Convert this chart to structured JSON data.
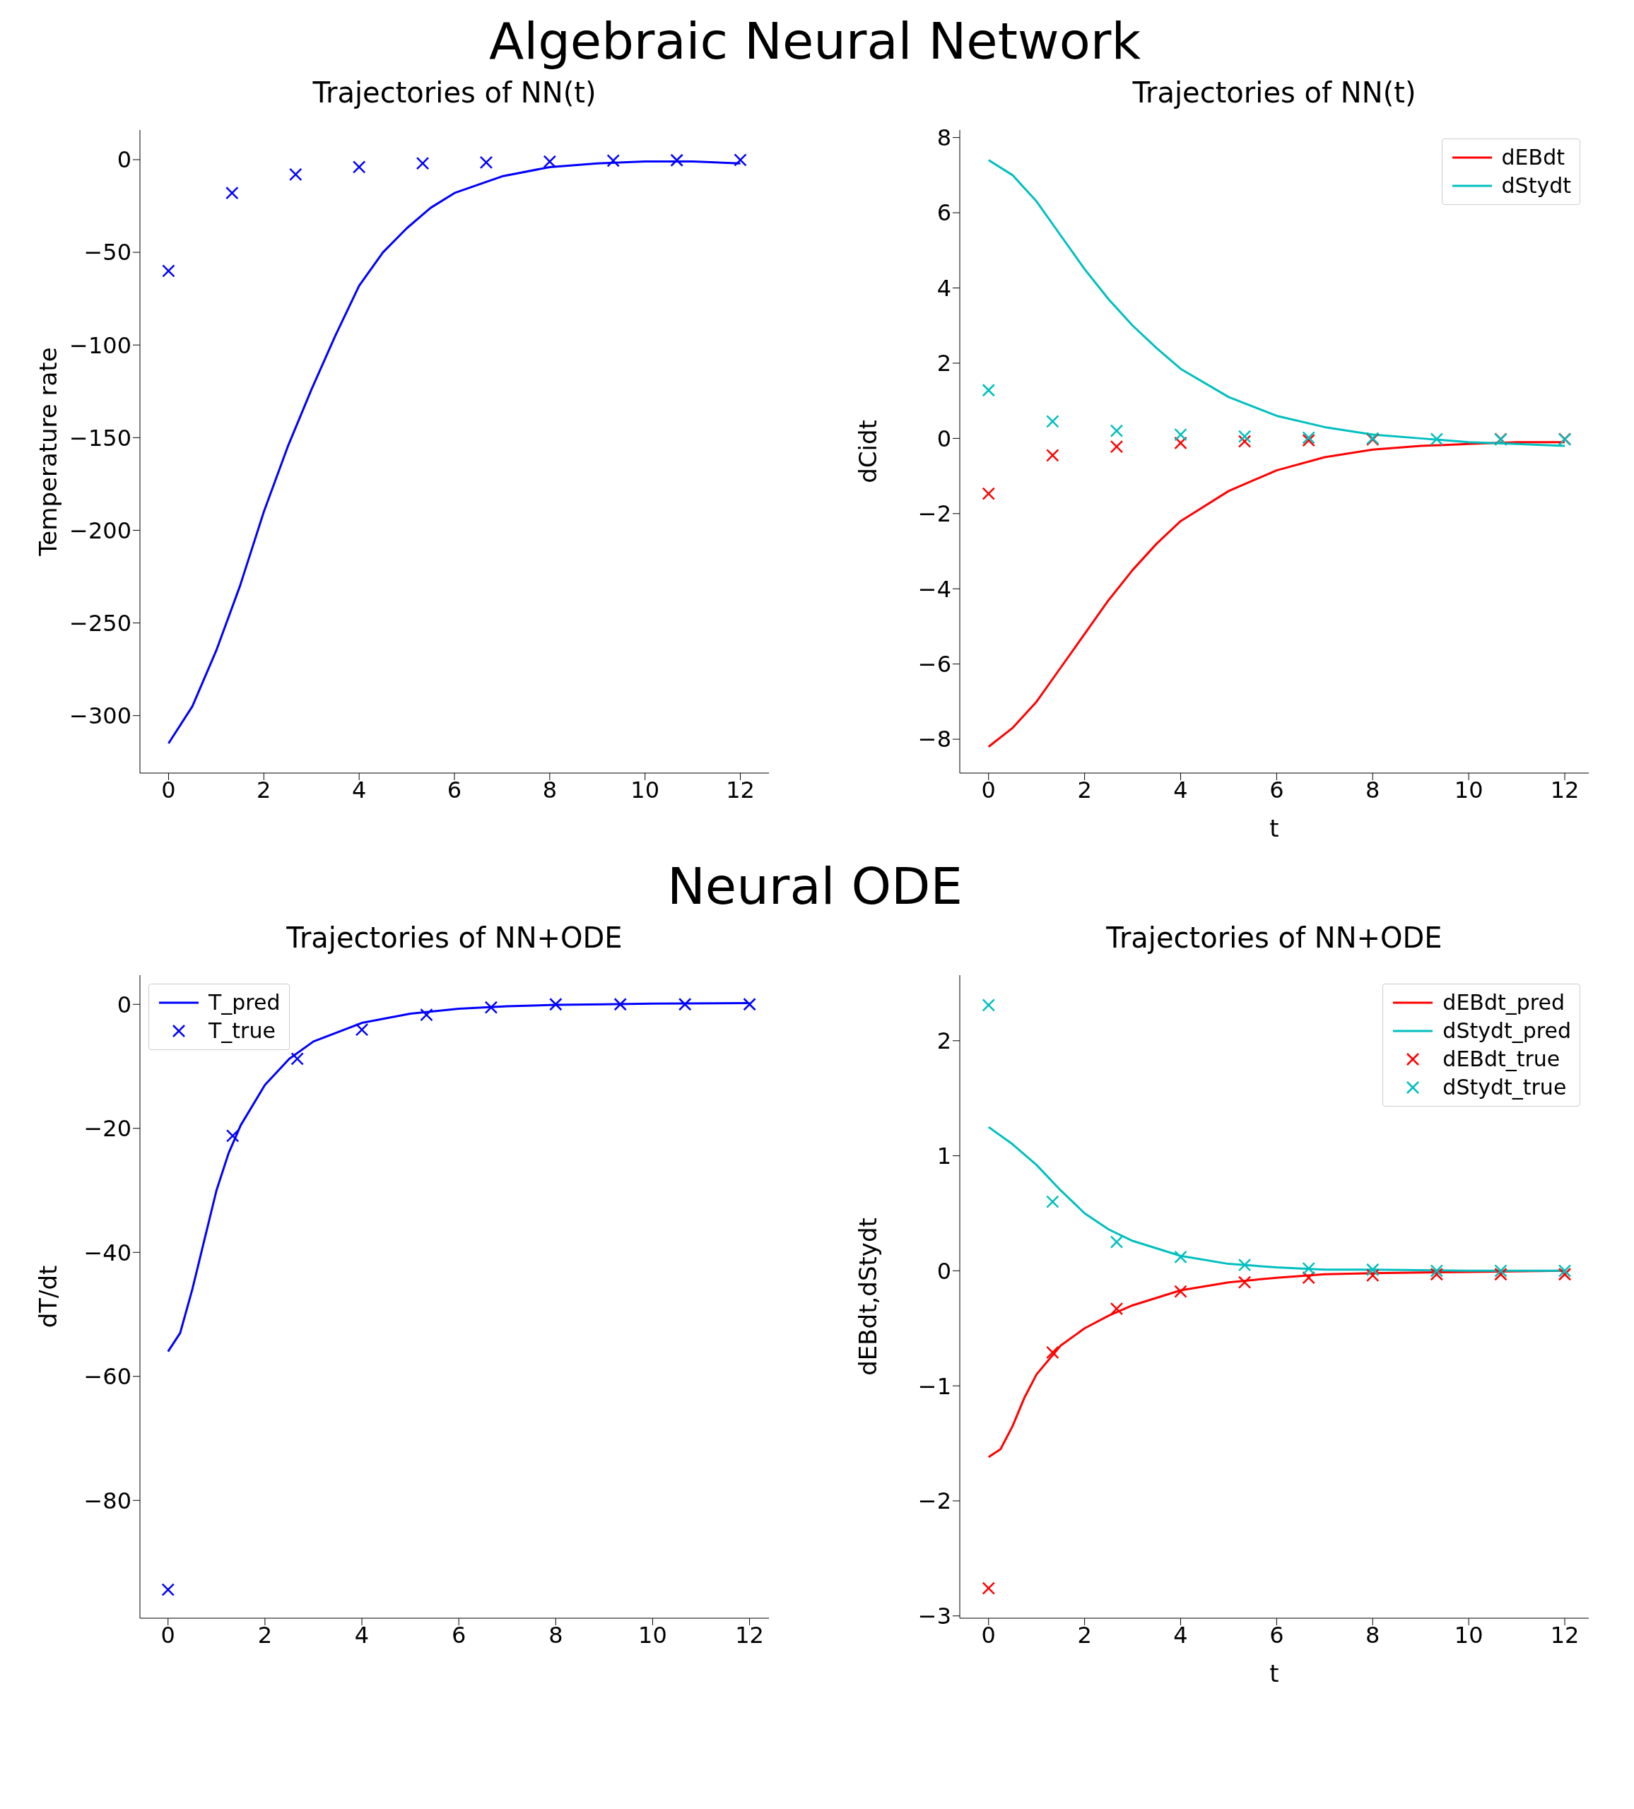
{
  "chart_data": [
    {
      "type": "line",
      "title": "Trajectories of NN(t)",
      "ylabel": "Temperature rate",
      "annotations": [
        "Algebraic Neural Network"
      ],
      "xlim": [
        -0.6,
        12.6
      ],
      "xticks": [
        0,
        2,
        4,
        6,
        8,
        10,
        12
      ],
      "ylim": [
        -331,
        16
      ],
      "yticks": [
        0,
        -50,
        -100,
        -150,
        -200,
        -250,
        -300
      ],
      "series": [
        {
          "type": "line",
          "color": "#0000ff",
          "x": [
            0,
            0.5,
            1,
            1.5,
            2,
            2.5,
            3,
            3.5,
            4,
            4.5,
            5,
            5.5,
            6,
            7,
            8,
            9,
            10,
            11,
            12
          ],
          "values": [
            -315,
            -295,
            -265,
            -230,
            -190,
            -155,
            -124,
            -95,
            -68,
            -50,
            -37,
            -26,
            -18,
            -9,
            -4,
            -2,
            -1,
            -1,
            -2
          ]
        },
        {
          "type": "scatter",
          "marker": "cross",
          "color": "#0000ff",
          "x": [
            0,
            1.333,
            2.667,
            4,
            5.333,
            6.667,
            8,
            9.333,
            10.667,
            12
          ],
          "values": [
            -60,
            -18,
            -8,
            -4,
            -2,
            -1.5,
            -1,
            -0.5,
            -0.3,
            -0.2
          ]
        }
      ]
    },
    {
      "type": "line",
      "title": "Trajectories of NN(t)",
      "xlabel": "t",
      "ylabel": "dCidt",
      "legend": "top right",
      "xlim": [
        -0.6,
        12.5
      ],
      "xticks": [
        0,
        2,
        4,
        6,
        8,
        10,
        12
      ],
      "ylim": [
        -8.9,
        8.2
      ],
      "yticks": [
        8,
        6,
        4,
        2,
        0,
        -2,
        -4,
        -6,
        -8
      ],
      "series": [
        {
          "type": "line",
          "name": "dEBdt",
          "color": "#ff0000",
          "x": [
            0,
            0.5,
            1,
            1.5,
            2,
            2.5,
            3,
            3.5,
            4,
            5,
            6,
            7,
            8,
            9,
            10,
            11,
            12
          ],
          "values": [
            -8.2,
            -7.7,
            -7.0,
            -6.1,
            -5.2,
            -4.3,
            -3.5,
            -2.8,
            -2.2,
            -1.4,
            -0.85,
            -0.5,
            -0.3,
            -0.2,
            -0.15,
            -0.1,
            -0.1
          ]
        },
        {
          "type": "line",
          "name": "dStydt",
          "color": "#00bfbf",
          "x": [
            0,
            0.5,
            1,
            1.5,
            2,
            2.5,
            3,
            3.5,
            4,
            5,
            6,
            7,
            8,
            9,
            10,
            11,
            12
          ],
          "values": [
            7.4,
            7.0,
            6.3,
            5.4,
            4.5,
            3.7,
            3.0,
            2.4,
            1.85,
            1.1,
            0.6,
            0.3,
            0.1,
            0,
            -0.1,
            -0.15,
            -0.2
          ]
        },
        {
          "type": "scatter",
          "marker": "cross",
          "color": "#ff0000",
          "x": [
            0,
            1.333,
            2.667,
            4,
            5.333,
            6.667,
            8,
            9.333,
            10.667,
            12
          ],
          "values": [
            -1.47,
            -0.45,
            -0.22,
            -0.12,
            -0.08,
            -0.05,
            -0.03,
            null,
            -0.02,
            -0.02
          ]
        },
        {
          "type": "scatter",
          "marker": "cross",
          "color": "#00bfbf",
          "x": [
            0,
            1.333,
            2.667,
            4,
            5.333,
            6.667,
            8,
            9.333,
            10.667,
            12
          ],
          "values": [
            1.28,
            0.45,
            0.2,
            0.1,
            0.05,
            0.02,
            0,
            -0.02,
            -0.03,
            -0.03
          ]
        }
      ]
    },
    {
      "type": "line",
      "title": "Trajectories of NN+ODE",
      "ylabel": "dT/dt",
      "annotations": [
        "Neural ODE"
      ],
      "legend": "top left",
      "xlim": [
        -0.58,
        12.4
      ],
      "xticks": [
        0,
        2,
        4,
        6,
        8,
        10,
        12
      ],
      "ylim": [
        -99,
        4.7
      ],
      "yticks": [
        0,
        -20,
        -40,
        -60,
        -80
      ],
      "series": [
        {
          "type": "line",
          "name": "T_pred",
          "color": "#0000ff",
          "x": [
            0,
            0.25,
            0.5,
            0.75,
            1,
            1.25,
            1.5,
            2,
            2.5,
            3,
            4,
            5,
            6,
            7,
            8,
            9,
            10,
            12
          ],
          "values": [
            -56,
            -53,
            -46,
            -38,
            -30,
            -24,
            -19.5,
            -13,
            -8.8,
            -6,
            -3,
            -1.5,
            -0.7,
            -0.3,
            -0.1,
            0,
            0.1,
            0.2
          ]
        },
        {
          "type": "scatter",
          "name": "T_true",
          "marker": "cross",
          "color": "#0000ff",
          "x": [
            0,
            1.333,
            2.667,
            4,
            5.333,
            6.667,
            8,
            9.333,
            10.667,
            12
          ],
          "values": [
            -94.4,
            -21.2,
            -8.8,
            -4.1,
            -1.7,
            -0.5,
            0,
            0,
            0,
            0
          ]
        }
      ]
    },
    {
      "type": "line",
      "title": "Trajectories of NN+ODE",
      "xlabel": "t",
      "ylabel": "dEBdt,dStydt",
      "legend": "top right",
      "xlim": [
        -0.6,
        12.5
      ],
      "xticks": [
        0,
        2,
        4,
        6,
        8,
        10,
        12
      ],
      "ylim": [
        -3.02,
        2.57
      ],
      "yticks": [
        2,
        1,
        0,
        -1,
        -2,
        -3
      ],
      "series": [
        {
          "type": "line",
          "name": "dEBdt_pred",
          "color": "#ff0000",
          "x": [
            0,
            0.25,
            0.5,
            0.75,
            1,
            1.5,
            2,
            2.5,
            3,
            4,
            5,
            6,
            7,
            8,
            10,
            12
          ],
          "values": [
            -1.62,
            -1.55,
            -1.35,
            -1.1,
            -0.9,
            -0.65,
            -0.5,
            -0.39,
            -0.3,
            -0.17,
            -0.1,
            -0.06,
            -0.03,
            -0.02,
            -0.01,
            0
          ]
        },
        {
          "type": "line",
          "name": "dStydt_pred",
          "color": "#00bfbf",
          "x": [
            0,
            0.5,
            1,
            1.5,
            2,
            2.5,
            3,
            4,
            5,
            6,
            7,
            8,
            10,
            12
          ],
          "values": [
            1.25,
            1.1,
            0.92,
            0.7,
            0.5,
            0.36,
            0.26,
            0.13,
            0.06,
            0.03,
            0.01,
            0.01,
            0,
            0
          ]
        },
        {
          "type": "scatter",
          "name": "dEBdt_true",
          "marker": "cross",
          "color": "#ff0000",
          "x": [
            0,
            1.333,
            2.667,
            4,
            5.333,
            6.667,
            8,
            9.333,
            10.667,
            12
          ],
          "values": [
            -2.76,
            -0.71,
            -0.33,
            -0.18,
            -0.1,
            -0.06,
            -0.04,
            -0.03,
            -0.03,
            -0.03
          ]
        },
        {
          "type": "scatter",
          "name": "dStydt_true",
          "marker": "cross",
          "color": "#00bfbf",
          "x": [
            0,
            1.333,
            2.667,
            4,
            5.333,
            6.667,
            8,
            9.333,
            10.667,
            12
          ],
          "values": [
            2.31,
            0.6,
            0.25,
            0.12,
            0.05,
            0.02,
            0.01,
            0,
            0,
            0
          ]
        }
      ]
    }
  ]
}
